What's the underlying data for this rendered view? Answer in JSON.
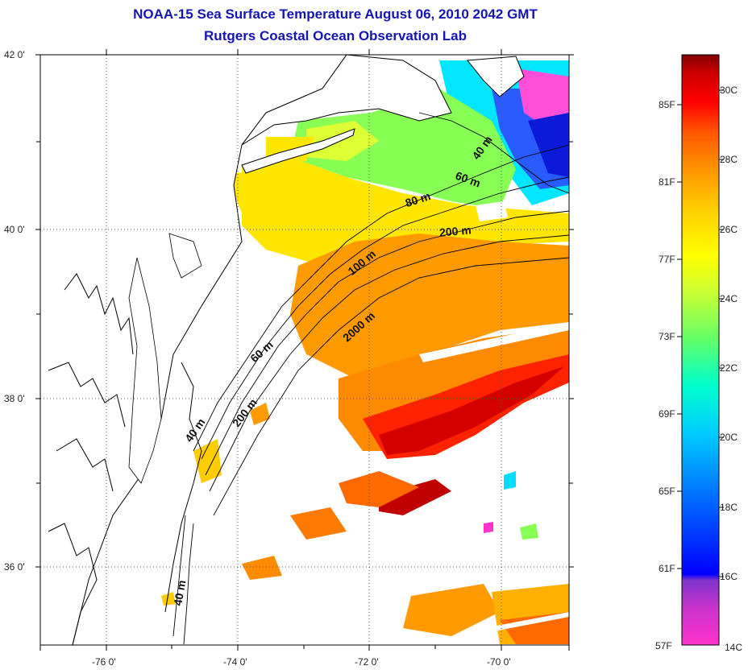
{
  "header": {
    "title": "NOAA-15 Sea Surface Temperature August 06, 2010 2042 GMT",
    "subtitle": "Rutgers Coastal Ocean Observation Lab"
  },
  "map": {
    "lon_ticks": [
      "-76 0'",
      "-74 0'",
      "-72 0'",
      "-70 0'"
    ],
    "lat_ticks": [
      "42 0'",
      "40 0'",
      "38 0'",
      "36 0'"
    ],
    "grid": "dotted",
    "contour_labels": [
      "40 m",
      "60 m",
      "80 m",
      "200 m",
      "100 m",
      "2000 m",
      "60 m",
      "200 m",
      "40 m",
      "40 m"
    ]
  },
  "colorbar": {
    "fahrenheit_labels": [
      "85F",
      "81F",
      "77F",
      "73F",
      "69F",
      "65F",
      "61F",
      "57F"
    ],
    "celsius_labels": [
      "30C",
      "28C",
      "26C",
      "24C",
      "22C",
      "20C",
      "18C",
      "16C",
      "14C"
    ],
    "range_c": [
      14,
      31
    ],
    "colors": [
      "#ff33cc",
      "#9933cc",
      "#0000ff",
      "#0066ff",
      "#00ccff",
      "#00ffcc",
      "#66ff66",
      "#ccff33",
      "#ffff00",
      "#ffcc00",
      "#ff9900",
      "#ff5500",
      "#ff0000",
      "#cc0000",
      "#800000"
    ]
  }
}
